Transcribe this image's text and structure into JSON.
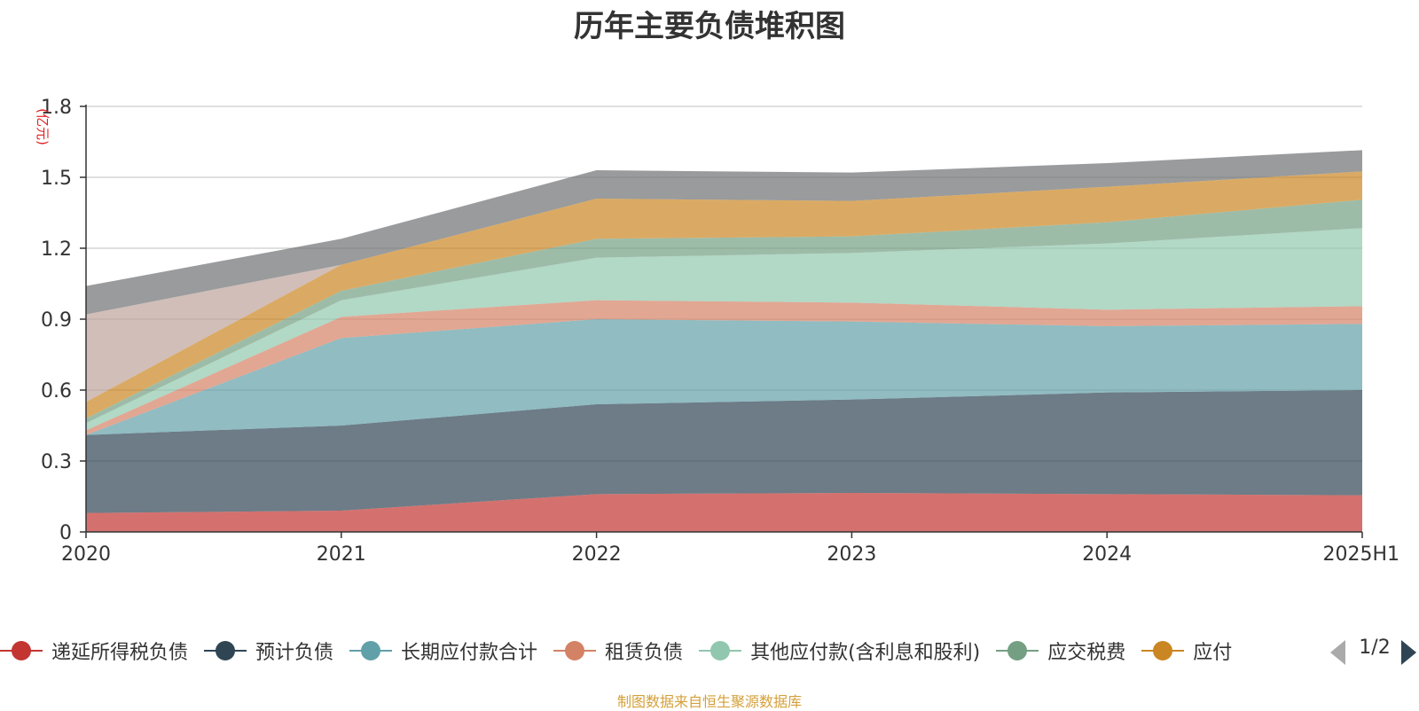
{
  "chart_data": {
    "type": "area",
    "stacked": true,
    "title": "历年主要负债堆积图",
    "unit_label": "(亿元)",
    "categories": [
      "2020",
      "2021",
      "2022",
      "2023",
      "2024",
      "2025H1"
    ],
    "yticks": [
      "0",
      "0.3",
      "0.6",
      "0.9",
      "1.2",
      "1.5",
      "1.8"
    ],
    "ylim": [
      0,
      1.8
    ],
    "grid": true,
    "series": [
      {
        "name": "递延所得税负债",
        "color": "#c23531",
        "values": [
          0.08,
          0.09,
          0.16,
          0.165,
          0.16,
          0.155
        ]
      },
      {
        "name": "预计负债",
        "color": "#2f4554",
        "values": [
          0.33,
          0.36,
          0.38,
          0.395,
          0.43,
          0.445
        ]
      },
      {
        "name": "长期应付款合计",
        "color": "#61a0a8",
        "values": [
          0.0,
          0.37,
          0.36,
          0.33,
          0.28,
          0.28
        ]
      },
      {
        "name": "租赁负债",
        "color": "#d48265",
        "values": [
          0.02,
          0.09,
          0.08,
          0.08,
          0.07,
          0.075
        ]
      },
      {
        "name": "其他应付款(含利息和股利)",
        "color": "#91c7ae",
        "values": [
          0.03,
          0.07,
          0.18,
          0.21,
          0.28,
          0.33
        ]
      },
      {
        "name": "应交税费",
        "color": "#749f83",
        "values": [
          0.02,
          0.04,
          0.08,
          0.07,
          0.09,
          0.12
        ]
      },
      {
        "name": "应付账款",
        "color": "#ca8622",
        "values": [
          0.07,
          0.11,
          0.17,
          0.15,
          0.15,
          0.12
        ]
      },
      {
        "name": "",
        "color": "#bda29a",
        "values": [
          0.37,
          0.0,
          0.0,
          0.0,
          0.0,
          0.0
        ]
      },
      {
        "name": "",
        "color": "#6e7074",
        "values": [
          0.12,
          0.11,
          0.12,
          0.12,
          0.1,
          0.09
        ]
      }
    ]
  },
  "legend_visible": [
    "递延所得税负债",
    "预计负债",
    "长期应付款合计",
    "租赁负债",
    "其他应付款(含利息和股利)",
    "应交税费",
    "应付"
  ],
  "pager": {
    "page_text": "1/2"
  },
  "source_note": "制图数据来自恒生聚源数据库"
}
